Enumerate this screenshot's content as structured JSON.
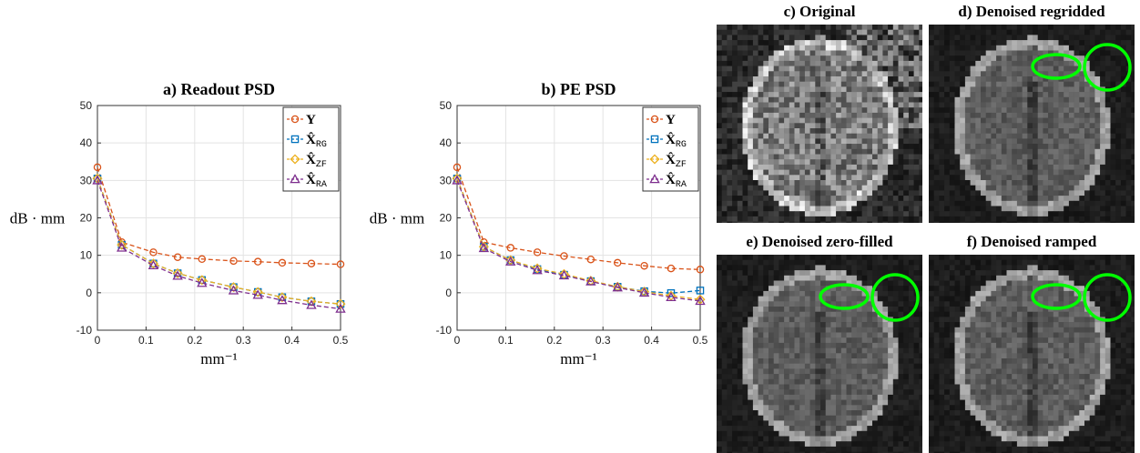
{
  "chart_data": [
    {
      "type": "line",
      "title": "a) Readout PSD",
      "xlabel": "mm⁻¹",
      "ylabel": "dB · mm",
      "xlim": [
        0,
        0.5
      ],
      "ylim": [
        -10,
        50
      ],
      "xticks": [
        "0",
        "0.1",
        "0.2",
        "0.3",
        "0.4",
        "0.5"
      ],
      "yticks": [
        "-10",
        "0",
        "10",
        "20",
        "30",
        "40",
        "50"
      ],
      "grid": true,
      "legend_position": "top-right",
      "x": [
        0,
        0.05,
        0.115,
        0.165,
        0.215,
        0.28,
        0.33,
        0.38,
        0.44,
        0.5
      ],
      "series": [
        {
          "name": "Y",
          "sub": "",
          "color": "#D95319",
          "marker": "circle",
          "values": [
            33.5,
            13.5,
            10.8,
            9.5,
            9.0,
            8.5,
            8.3,
            8.0,
            7.8,
            7.6
          ]
        },
        {
          "name": "X̂",
          "sub": "RG",
          "color": "#0072BD",
          "marker": "square",
          "values": [
            30.5,
            12.8,
            7.8,
            5.2,
            3.4,
            1.5,
            0.2,
            -1.2,
            -2.3,
            -3.0
          ]
        },
        {
          "name": "X̂",
          "sub": "ZF",
          "color": "#EDB120",
          "marker": "diamond",
          "values": [
            30.5,
            12.8,
            7.8,
            5.2,
            3.4,
            1.5,
            0.2,
            -1.2,
            -2.3,
            -3.0
          ]
        },
        {
          "name": "X̂",
          "sub": "RA",
          "color": "#7E2F8E",
          "marker": "triangle",
          "values": [
            30.0,
            12.0,
            7.3,
            4.5,
            2.6,
            0.6,
            -0.6,
            -2.0,
            -3.3,
            -4.3
          ]
        }
      ]
    },
    {
      "type": "line",
      "title": "b) PE PSD",
      "xlabel": "mm⁻¹",
      "ylabel": "dB · mm",
      "xlim": [
        0,
        0.5
      ],
      "ylim": [
        -10,
        50
      ],
      "xticks": [
        "0",
        "0.1",
        "0.2",
        "0.3",
        "0.4",
        "0.5"
      ],
      "yticks": [
        "-10",
        "0",
        "10",
        "20",
        "30",
        "40",
        "50"
      ],
      "grid": true,
      "legend_position": "top-right",
      "x": [
        0,
        0.055,
        0.11,
        0.165,
        0.22,
        0.275,
        0.33,
        0.385,
        0.44,
        0.5
      ],
      "series": [
        {
          "name": "Y",
          "sub": "",
          "color": "#D95319",
          "marker": "circle",
          "values": [
            33.5,
            13.5,
            12.0,
            10.8,
            9.8,
            8.9,
            8.0,
            7.2,
            6.5,
            6.2
          ]
        },
        {
          "name": "X̂",
          "sub": "RG",
          "color": "#0072BD",
          "marker": "square",
          "values": [
            30.5,
            12.3,
            8.7,
            6.3,
            4.8,
            3.1,
            1.6,
            0.4,
            -0.1,
            0.6
          ]
        },
        {
          "name": "X̂",
          "sub": "ZF",
          "color": "#EDB120",
          "marker": "diamond",
          "values": [
            30.5,
            12.3,
            8.7,
            6.5,
            5.0,
            3.2,
            1.6,
            0.3,
            -0.8,
            -1.8
          ]
        },
        {
          "name": "X̂",
          "sub": "RA",
          "color": "#7E2F8E",
          "marker": "triangle",
          "values": [
            30.0,
            11.9,
            8.3,
            6.0,
            4.6,
            3.0,
            1.4,
            0.0,
            -1.2,
            -2.2
          ]
        }
      ]
    }
  ],
  "panels": {
    "c": {
      "title": "c) Original"
    },
    "d": {
      "title": "d) Denoised regridded"
    },
    "e": {
      "title": "e) Denoised zero-filled"
    },
    "f": {
      "title": "f) Denoised ramped"
    }
  },
  "highlight_color": "#00FF00"
}
